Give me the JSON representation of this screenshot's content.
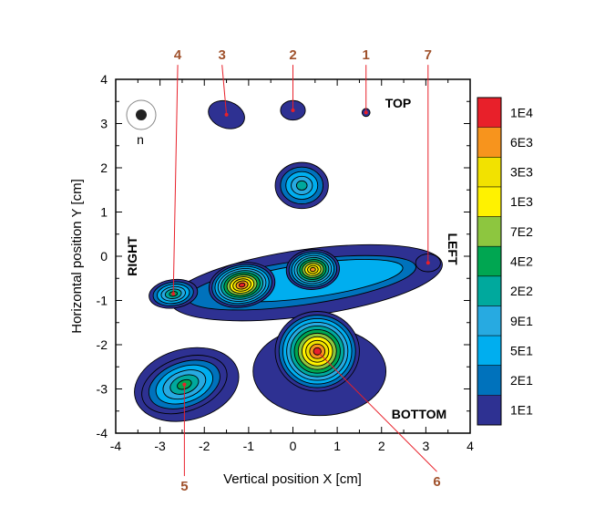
{
  "chart_data": {
    "type": "heatmap",
    "title": "",
    "xlabel": "Vertical position X [cm]",
    "ylabel": "Horizontal position Y [cm]",
    "xlim": [
      -4,
      4
    ],
    "ylim": [
      -4,
      4
    ],
    "xticks": [
      "-4",
      "-3",
      "-2",
      "-1",
      "0",
      "1",
      "2",
      "3",
      "4"
    ],
    "yticks": [
      "4",
      "3",
      "2",
      "1",
      "0",
      "-1",
      "-2",
      "-3",
      "-4"
    ],
    "grid": false,
    "colorbar": {
      "placement": "right",
      "levels": [
        {
          "label": "1E4",
          "color": "#e8202a"
        },
        {
          "label": "6E3",
          "color": "#f7941d"
        },
        {
          "label": "3E3",
          "color": "#f2e200"
        },
        {
          "label": "1E3",
          "color": "#fff200"
        },
        {
          "label": "7E2",
          "color": "#8dc63f"
        },
        {
          "label": "4E2",
          "color": "#00a651"
        },
        {
          "label": "2E2",
          "color": "#00a99d"
        },
        {
          "label": "9E1",
          "color": "#27aae1"
        },
        {
          "label": "5E1",
          "color": "#00aeef"
        },
        {
          "label": "2E1",
          "color": "#0072bc"
        },
        {
          "label": "1E1",
          "color": "#2e3192"
        }
      ]
    },
    "region_labels": [
      {
        "text": "TOP"
      },
      {
        "text": "BOTTOM"
      },
      {
        "text": "RIGHT"
      },
      {
        "text": "LEFT"
      }
    ],
    "peaks": [
      {
        "label": "1",
        "x": 1.65,
        "y": 3.25,
        "level": "1E1"
      },
      {
        "label": "2",
        "x": 0.0,
        "y": 3.3,
        "level": "1E1"
      },
      {
        "label": "3",
        "x": -1.5,
        "y": 3.2,
        "level": "1E1"
      },
      {
        "label": "4",
        "x": -2.7,
        "y": -0.85,
        "level": "4E2"
      },
      {
        "label": "5",
        "x": -2.45,
        "y": -2.9,
        "level": "4E2"
      },
      {
        "label": "6",
        "x": 0.55,
        "y": -2.15,
        "level": "1E4"
      },
      {
        "label": "7",
        "x": 3.05,
        "y": -0.15,
        "level": "1E1"
      }
    ],
    "hotspots": [
      {
        "x": -1.15,
        "y": -0.65,
        "level": "1E4"
      },
      {
        "x": 0.45,
        "y": -0.3,
        "level": "6E3"
      },
      {
        "x": 0.2,
        "y": 1.6,
        "level": "2E2"
      }
    ],
    "legend_icon": {
      "label": "n"
    }
  }
}
